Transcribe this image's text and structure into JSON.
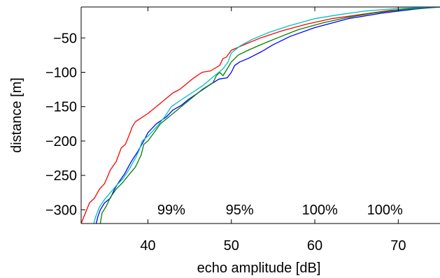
{
  "chart_data": {
    "type": "line",
    "title": "",
    "xlabel": "echo amplitude [dB]",
    "ylabel": "distance [m]",
    "xlim": [
      32,
      75
    ],
    "ylim": [
      -320,
      -5
    ],
    "xticks": [
      40,
      50,
      60,
      70
    ],
    "xtick_labels": [
      "40",
      "50",
      "60",
      "70"
    ],
    "yticks": [
      -50,
      -100,
      -150,
      -200,
      -250,
      -300
    ],
    "ytick_labels": [
      "−50",
      "−100",
      "−150",
      "−200",
      "−250",
      "−300"
    ],
    "grid": false,
    "legend": "none",
    "annotations": [
      {
        "text": "99%",
        "x": 42.8,
        "y": -307
      },
      {
        "text": "95%",
        "x": 51.0,
        "y": -307
      },
      {
        "text": "100%",
        "x": 60.6,
        "y": -307
      },
      {
        "text": "100%",
        "x": 68.4,
        "y": -307
      }
    ],
    "series": [
      {
        "color": "#ff0000",
        "x": [
          32.0,
          32.5,
          33.0,
          33.6,
          34.2,
          34.8,
          35.5,
          36.2,
          36.5,
          36.8,
          37.3,
          37.8,
          38.1,
          38.5,
          40.0,
          41.0,
          42.0,
          43.0,
          43.8,
          44.5,
          45.5,
          46.5,
          47.5,
          48.6,
          49.0,
          49.4,
          50.0,
          51.5,
          53.5,
          56.0,
          59.0,
          62.0,
          65.5,
          69.0,
          72.0,
          75.0
        ],
        "y": [
          -320,
          -305,
          -290,
          -283,
          -270,
          -262,
          -242,
          -230,
          -220,
          -210,
          -205,
          -190,
          -180,
          -172,
          -160,
          -150,
          -140,
          -130,
          -125,
          -118,
          -108,
          -100,
          -98,
          -90,
          -80,
          -78,
          -68,
          -60,
          -50,
          -40,
          -30,
          -22,
          -16,
          -10,
          -7,
          -5
        ]
      },
      {
        "color": "#0000ff",
        "x": [
          33.8,
          34.0,
          34.3,
          34.8,
          35.5,
          36.0,
          36.5,
          37.2,
          38.0,
          38.8,
          39.5,
          40.0,
          41.0,
          42.2,
          43.0,
          44.0,
          44.8,
          46.0,
          47.2,
          48.5,
          49.5,
          50.0,
          50.4,
          51.0,
          52.0,
          53.6,
          55.0,
          57.0,
          60.0,
          64.0,
          68.0,
          72.0,
          75.0
        ],
        "y": [
          -320,
          -310,
          -300,
          -290,
          -283,
          -270,
          -260,
          -248,
          -230,
          -215,
          -200,
          -188,
          -175,
          -165,
          -155,
          -148,
          -140,
          -130,
          -120,
          -110,
          -108,
          -100,
          -90,
          -85,
          -80,
          -70,
          -60,
          -48,
          -35,
          -22,
          -14,
          -8,
          -5
        ]
      },
      {
        "color": "#008000",
        "x": [
          34.3,
          34.5,
          35.0,
          35.5,
          36.2,
          37.0,
          37.8,
          38.5,
          39.2,
          39.5,
          40.0,
          40.6,
          41.5,
          42.5,
          43.5,
          44.5,
          45.5,
          46.5,
          47.8,
          48.2,
          48.6,
          49.0,
          49.5,
          50.0,
          50.8,
          52.0,
          53.5,
          55.5,
          58.0,
          61.0,
          64.0,
          67.0,
          71.0,
          75.0
        ],
        "y": [
          -320,
          -305,
          -295,
          -282,
          -270,
          -260,
          -248,
          -238,
          -220,
          -205,
          -200,
          -190,
          -175,
          -165,
          -155,
          -145,
          -135,
          -125,
          -115,
          -105,
          -100,
          -105,
          -95,
          -85,
          -75,
          -68,
          -60,
          -50,
          -38,
          -28,
          -20,
          -14,
          -8,
          -5
        ]
      },
      {
        "color": "#00bfbf",
        "x": [
          33.5,
          33.8,
          34.2,
          34.8,
          35.5,
          36.2,
          37.0,
          37.8,
          38.5,
          39.0,
          39.3,
          40.0,
          41.0,
          42.0,
          42.8,
          44.0,
          45.0,
          46.5,
          47.5,
          48.5,
          49.0,
          49.6,
          50.0,
          51.0,
          52.5,
          54.5,
          57.0,
          60.0,
          63.0,
          66.0,
          70.0,
          75.0
        ],
        "y": [
          -320,
          -308,
          -296,
          -285,
          -275,
          -265,
          -255,
          -240,
          -225,
          -212,
          -200,
          -193,
          -180,
          -165,
          -150,
          -140,
          -132,
          -120,
          -110,
          -100,
          -95,
          -85,
          -72,
          -62,
          -52,
          -42,
          -32,
          -22,
          -16,
          -11,
          -7,
          -5
        ]
      }
    ]
  }
}
